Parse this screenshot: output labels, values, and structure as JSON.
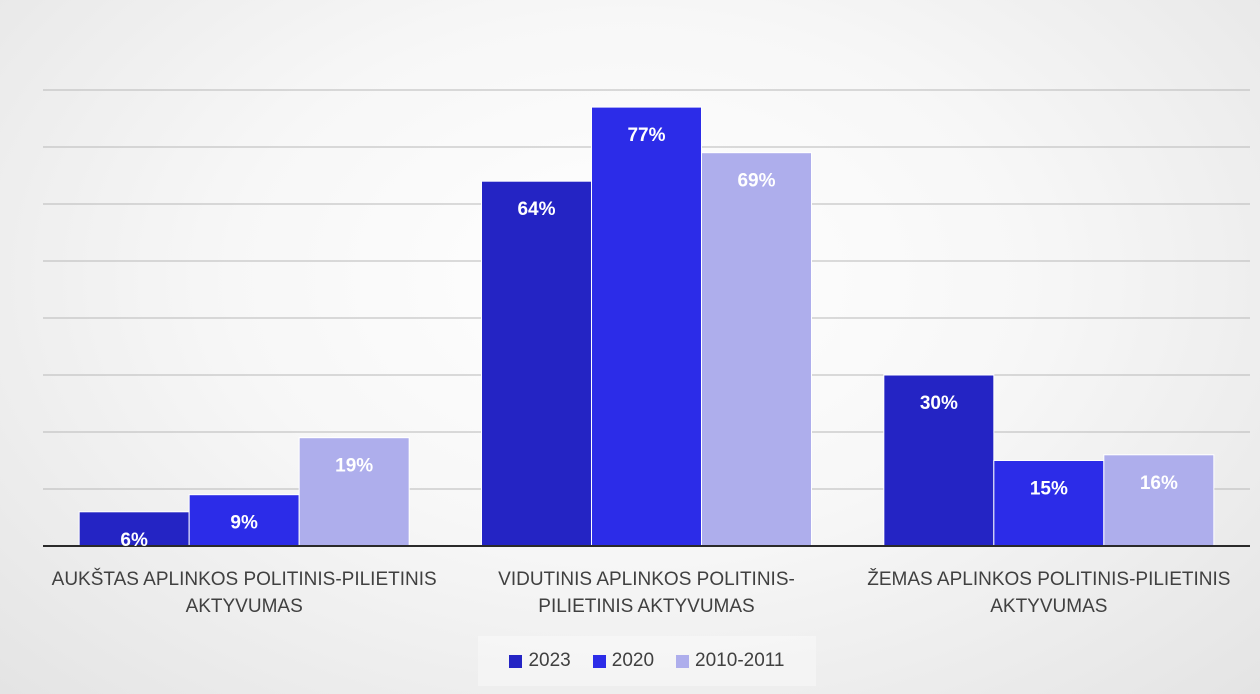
{
  "chart_data": {
    "type": "bar",
    "categories": [
      [
        "AUKŠTAS APLINKOS POLITINIS-PILIETINIS",
        "AKTYVUMAS"
      ],
      [
        "VIDUTINIS APLINKOS POLITINIS-",
        "PILIETINIS AKTYVUMAS"
      ],
      [
        "ŽEMAS APLINKOS POLITINIS-PILIETINIS",
        "AKTYVUMAS"
      ]
    ],
    "series": [
      {
        "name": "2023",
        "values": [
          6,
          64,
          30
        ],
        "labels": [
          "6%",
          "64%",
          "30%"
        ],
        "color": "#2424c4"
      },
      {
        "name": "2020",
        "values": [
          9,
          77,
          15
        ],
        "labels": [
          "9%",
          "77%",
          "15%"
        ],
        "color": "#2c2ce8"
      },
      {
        "name": "2010-2011",
        "values": [
          19,
          69,
          16
        ],
        "labels": [
          "19%",
          "69%",
          "16%"
        ],
        "color": "#aeaeec"
      }
    ],
    "ylim": [
      0,
      85
    ],
    "y_unit": "%",
    "grid": true,
    "legend": "bottom",
    "data_labels": "inside-end"
  }
}
